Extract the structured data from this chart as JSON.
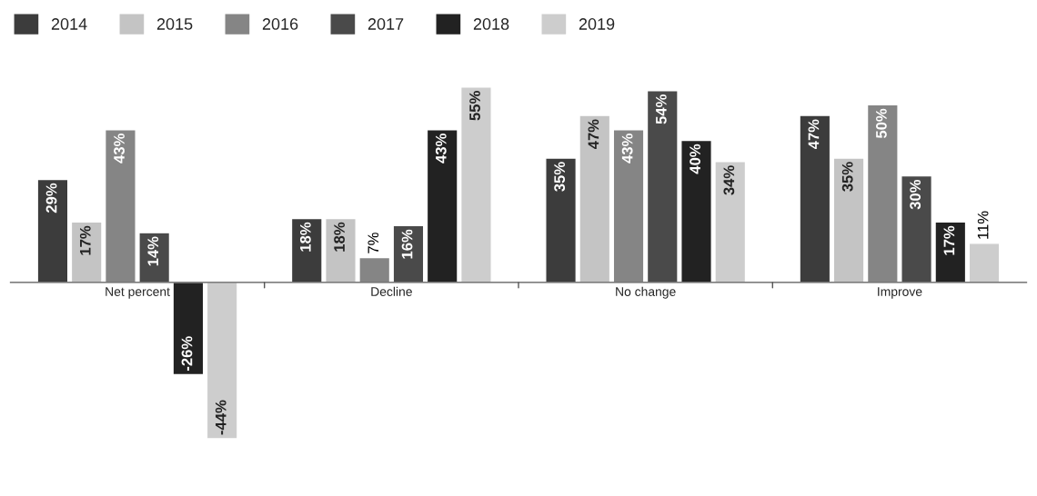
{
  "chart_data": {
    "type": "bar",
    "categories": [
      "Net percent",
      "Decline",
      "No change",
      "Improve"
    ],
    "series": [
      {
        "name": "2014",
        "color": "#3c3c3c",
        "values": [
          29,
          18,
          35,
          47
        ],
        "value_labels": [
          "29%",
          "18%",
          "35%",
          "47%"
        ]
      },
      {
        "name": "2015",
        "color": "#c4c4c4",
        "values": [
          17,
          18,
          47,
          35
        ],
        "value_labels": [
          "17%",
          "18%",
          "47%",
          "35%"
        ]
      },
      {
        "name": "2016",
        "color": "#858585",
        "values": [
          43,
          7,
          43,
          50
        ],
        "value_labels": [
          "43%",
          "7%",
          "43%",
          "50%"
        ]
      },
      {
        "name": "2017",
        "color": "#4a4a4a",
        "values": [
          14,
          16,
          54,
          30
        ],
        "value_labels": [
          "14%",
          "16%",
          "54%",
          "30%"
        ]
      },
      {
        "name": "2018",
        "color": "#222222",
        "values": [
          -26,
          43,
          40,
          17
        ],
        "value_labels": [
          "-26%",
          "43%",
          "40%",
          "17%"
        ]
      },
      {
        "name": "2019",
        "color": "#cdcdcd",
        "values": [
          -44,
          55,
          34,
          11
        ],
        "value_labels": [
          "-44%",
          "55%",
          "34%",
          "11%"
        ]
      }
    ],
    "legend": "top left",
    "grid": false
  }
}
